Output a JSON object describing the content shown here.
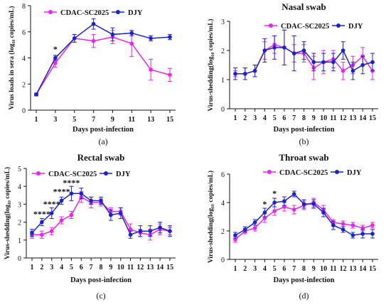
{
  "colors": {
    "magenta": "#ee22ee",
    "blue": "#1a22cc",
    "axis": "#111111"
  },
  "xlabel": "Days post-infection",
  "charts": [
    {
      "panel_label": "(a)",
      "title": "",
      "ylabel": "Virus loads in sera (log₁₀ copies/mL)",
      "ylim": [
        0,
        8
      ],
      "yticks": [
        0,
        2,
        4,
        6,
        8
      ],
      "ytick_labels": [
        "0",
        "2",
        "4",
        "6",
        "8"
      ],
      "x": [
        1,
        3,
        5,
        7,
        9,
        11,
        13,
        15
      ],
      "xtick_labels": [
        "1",
        "3",
        "5",
        "7",
        "9",
        "11",
        "13",
        "15"
      ],
      "legend": [
        "CDAC-SC2025",
        "DJY"
      ],
      "annotations": [
        {
          "text": "*",
          "x": 3,
          "y": 4.45
        }
      ]
    },
    {
      "panel_label": "(b)",
      "title": "Nasal swab",
      "ylabel": "Virus-shedding(log₁₀ copies/mL)",
      "ylim": [
        0,
        3
      ],
      "yticks": [
        0,
        1,
        2,
        3
      ],
      "ytick_labels": [
        "0",
        "1",
        "2",
        "3"
      ],
      "x": [
        1,
        2,
        3,
        4,
        5,
        6,
        7,
        8,
        9,
        10,
        11,
        12,
        13,
        14,
        15
      ],
      "xtick_labels": [
        "1",
        "2",
        "3",
        "4",
        "5",
        "6",
        "7",
        "8",
        "9",
        "10",
        "11",
        "12",
        "13",
        "14",
        "15"
      ],
      "legend": [
        "CDAC-SC2025",
        "DJY"
      ],
      "annotations": []
    },
    {
      "panel_label": "(c)",
      "title": "Rectal swab",
      "ylabel": "Virus-shedding(log₁₀ copies/mL)",
      "ylim": [
        0,
        5
      ],
      "yticks": [
        0,
        1,
        2,
        3,
        4,
        5
      ],
      "ytick_labels": [
        "0",
        "1",
        "2",
        "3",
        "4",
        "5"
      ],
      "x": [
        1,
        2,
        3,
        4,
        5,
        6,
        7,
        8,
        9,
        10,
        11,
        12,
        13,
        14,
        15
      ],
      "xtick_labels": [
        "1",
        "2",
        "3",
        "4",
        "5",
        "6",
        "7",
        "8",
        "9",
        "10",
        "11",
        "12",
        "13",
        "14",
        "15"
      ],
      "legend": [
        "CDAC-SC2025",
        "DJY"
      ],
      "annotations": [
        {
          "text": "****",
          "x": 2,
          "y": 2.3
        },
        {
          "text": "****",
          "x": 3,
          "y": 2.85
        },
        {
          "text": "****",
          "x": 4,
          "y": 3.55
        },
        {
          "text": "****",
          "x": 5,
          "y": 4.05
        }
      ]
    },
    {
      "panel_label": "(d)",
      "title": "Throat swab",
      "ylabel": "Virus-shedding(log₁₀ copies/mL)",
      "ylim": [
        0,
        6
      ],
      "yticks": [
        0,
        2,
        4,
        6
      ],
      "ytick_labels": [
        "0",
        "2",
        "4",
        "6"
      ],
      "x": [
        1,
        2,
        3,
        4,
        5,
        6,
        7,
        8,
        9,
        10,
        11,
        12,
        13,
        14,
        15
      ],
      "xtick_labels": [
        "1",
        "2",
        "3",
        "4",
        "5",
        "6",
        "7",
        "8",
        "9",
        "10",
        "11",
        "12",
        "13",
        "14",
        "15"
      ],
      "legend": [
        "CDAC-SC2025",
        "DJY"
      ],
      "annotations": [
        {
          "text": "*",
          "x": 4,
          "y": 3.7
        },
        {
          "text": "*",
          "x": 5,
          "y": 4.45
        }
      ]
    }
  ],
  "chart_data": [
    {
      "type": "line",
      "x": [
        1,
        3,
        5,
        7,
        9,
        11,
        13,
        15
      ],
      "series": [
        {
          "name": "CDAC-SC2025",
          "values": [
            1.2,
            3.6,
            5.5,
            5.3,
            5.6,
            5.1,
            3.1,
            2.7
          ],
          "errors": [
            0.1,
            0.3,
            0.3,
            0.5,
            0.5,
            1.0,
            0.8,
            0.5
          ]
        },
        {
          "name": "DJY",
          "values": [
            1.2,
            4.0,
            5.5,
            6.6,
            5.8,
            5.9,
            5.5,
            5.6
          ],
          "errors": [
            0.1,
            0.2,
            0.3,
            0.4,
            0.5,
            0.2,
            0.2,
            0.2
          ]
        }
      ]
    },
    {
      "type": "line",
      "x": [
        1,
        2,
        3,
        4,
        5,
        6,
        7,
        8,
        9,
        10,
        11,
        12,
        13,
        14,
        15
      ],
      "series": [
        {
          "name": "CDAC-SC2025",
          "values": [
            1.2,
            1.2,
            1.3,
            2.0,
            2.2,
            2.1,
            1.9,
            1.9,
            1.4,
            1.6,
            1.7,
            1.3,
            1.5,
            1.8,
            1.3
          ],
          "errors": [
            0.1,
            0.2,
            0.2,
            0.3,
            0.3,
            0.6,
            0.3,
            0.3,
            0.4,
            0.4,
            0.3,
            0.3,
            0.3,
            0.3,
            0.3
          ]
        },
        {
          "name": "DJY",
          "values": [
            1.2,
            1.2,
            1.3,
            2.0,
            2.1,
            2.1,
            1.9,
            2.0,
            1.6,
            1.6,
            1.6,
            2.0,
            1.3,
            1.5,
            1.6
          ],
          "errors": [
            0.2,
            0.2,
            0.2,
            0.4,
            0.4,
            0.6,
            0.6,
            0.3,
            0.3,
            0.3,
            0.3,
            0.3,
            0.3,
            0.3,
            0.3
          ]
        }
      ]
    },
    {
      "type": "line",
      "x": [
        1,
        2,
        3,
        4,
        5,
        6,
        7,
        8,
        9,
        10,
        11,
        12,
        13,
        14,
        15
      ],
      "series": [
        {
          "name": "CDAC-SC2025",
          "values": [
            1.3,
            1.3,
            1.5,
            2.1,
            2.4,
            3.4,
            3.1,
            3.1,
            2.6,
            2.6,
            1.6,
            1.4,
            1.3,
            1.6,
            1.5
          ],
          "errors": [
            0.2,
            0.2,
            0.2,
            0.2,
            0.2,
            0.3,
            0.3,
            0.2,
            0.2,
            0.2,
            0.3,
            0.2,
            0.3,
            0.3,
            0.2
          ]
        },
        {
          "name": "DJY",
          "values": [
            1.4,
            2.0,
            2.5,
            3.2,
            3.6,
            3.6,
            3.2,
            3.2,
            2.4,
            2.5,
            1.3,
            1.5,
            1.5,
            1.7,
            1.5
          ],
          "errors": [
            0.2,
            0.2,
            0.3,
            0.2,
            0.4,
            0.3,
            0.2,
            0.2,
            0.3,
            0.3,
            0.2,
            0.3,
            0.3,
            0.3,
            0.3
          ]
        }
      ]
    },
    {
      "type": "line",
      "x": [
        1,
        2,
        3,
        4,
        5,
        6,
        7,
        8,
        9,
        10,
        11,
        12,
        13,
        14,
        15
      ],
      "series": [
        {
          "name": "CDAC-SC2025",
          "values": [
            1.4,
            2.0,
            2.2,
            2.9,
            3.4,
            3.7,
            3.5,
            3.8,
            4.0,
            3.5,
            2.6,
            2.5,
            2.4,
            2.2,
            2.4
          ],
          "errors": [
            0.2,
            0.2,
            0.2,
            0.3,
            0.3,
            0.3,
            0.3,
            0.3,
            0.3,
            0.3,
            0.2,
            0.2,
            0.2,
            0.2,
            0.2
          ]
        },
        {
          "name": "DJY",
          "values": [
            1.7,
            2.1,
            2.6,
            3.3,
            4.0,
            4.1,
            4.6,
            3.9,
            3.9,
            3.3,
            2.4,
            2.1,
            1.7,
            1.8,
            1.8
          ],
          "errors": [
            0.2,
            0.2,
            0.2,
            0.3,
            0.3,
            0.3,
            0.2,
            0.3,
            0.3,
            0.3,
            0.3,
            0.2,
            0.2,
            0.3,
            0.3
          ]
        }
      ]
    }
  ]
}
